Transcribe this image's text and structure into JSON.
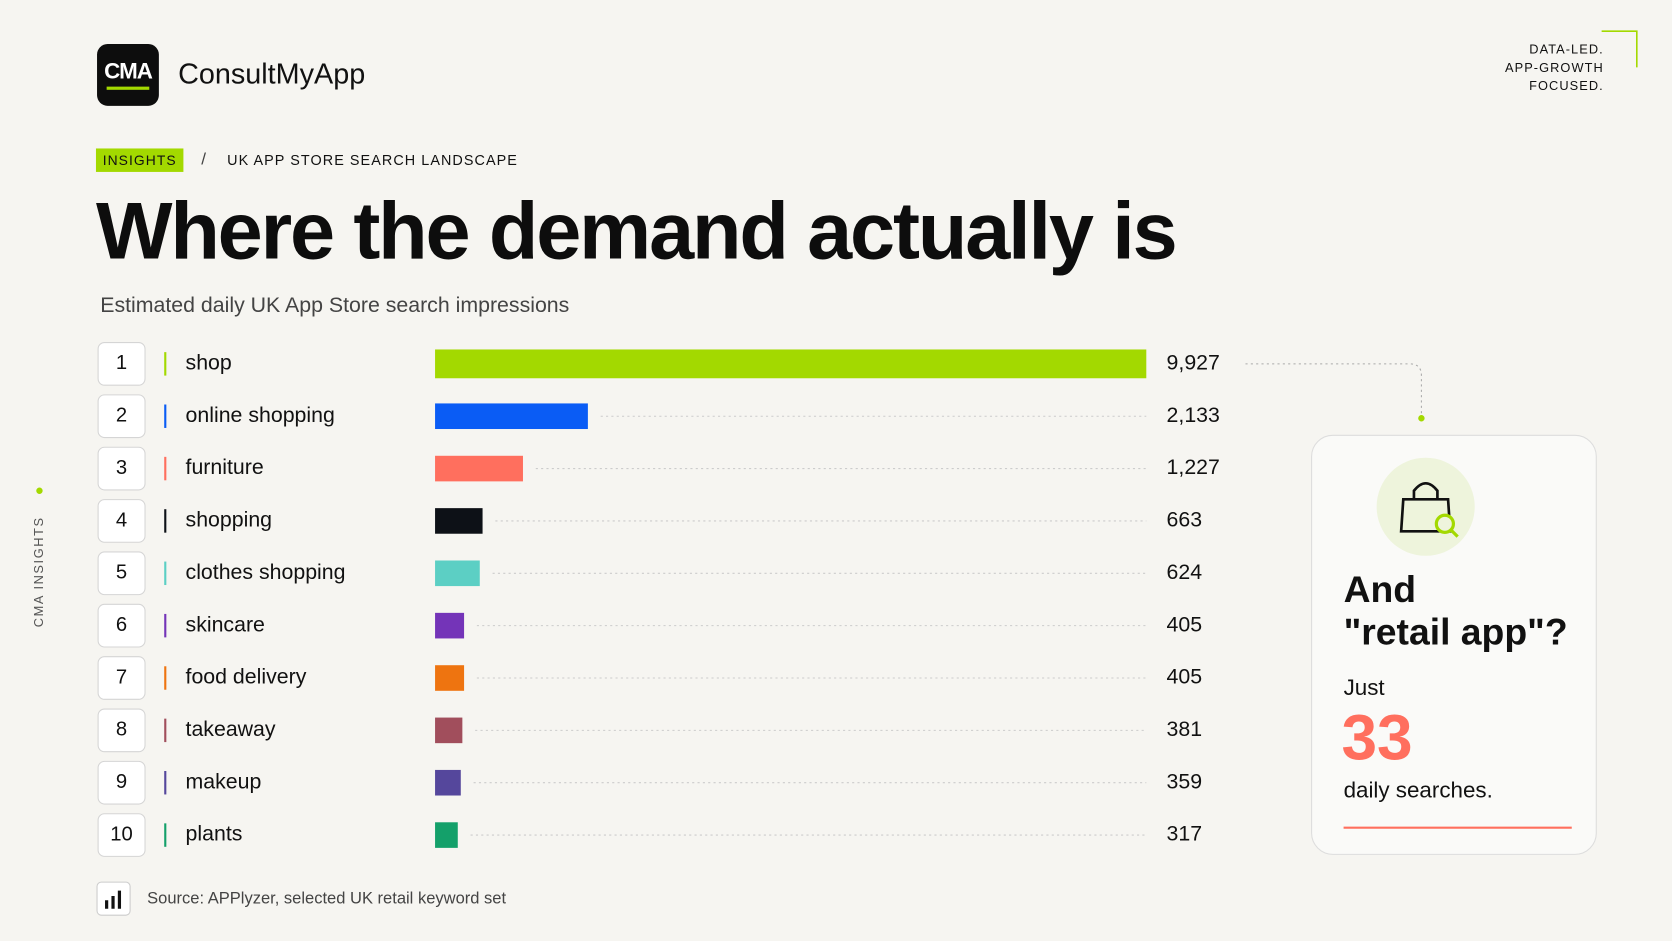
{
  "brand": {
    "logo": "CMA",
    "name": "ConsultMyApp",
    "tagline": [
      "DATA-LED.",
      "APP-GROWTH",
      "FOCUSED."
    ],
    "side_label": "CMA INSIGHTS"
  },
  "breadcrumb": {
    "tag": "INSIGHTS",
    "separator": "/",
    "section": "UK APP STORE SEARCH LANDSCAPE"
  },
  "chart_data": {
    "type": "bar",
    "orientation": "horizontal",
    "title": "Where the demand actually is",
    "subtitle": "Estimated daily UK App Store search impressions",
    "ranks": [
      1,
      2,
      3,
      4,
      5,
      6,
      7,
      8,
      9,
      10
    ],
    "categories": [
      "shop",
      "online shopping",
      "furniture",
      "shopping",
      "clothes shopping",
      "skincare",
      "food delivery",
      "takeaway",
      "makeup",
      "plants"
    ],
    "values": [
      9927,
      2133,
      1227,
      663,
      624,
      405,
      405,
      381,
      359,
      317
    ],
    "value_labels": [
      "9,927",
      "2,133",
      "1,227",
      "663",
      "624",
      "405",
      "405",
      "381",
      "359",
      "317"
    ],
    "colors": [
      "#a3d900",
      "#0a5cf5",
      "#ff6f5e",
      "#0d1117",
      "#5ccfc4",
      "#7434b8",
      "#ee7410",
      "#a14e5c",
      "#55479c",
      "#14a06a"
    ],
    "source": "Source: APPlyzer, selected UK retail keyword set"
  },
  "callout": {
    "heading": [
      "And",
      "\"retail app\"?"
    ],
    "lead": "Just",
    "value": 33,
    "unit": "daily searches."
  }
}
